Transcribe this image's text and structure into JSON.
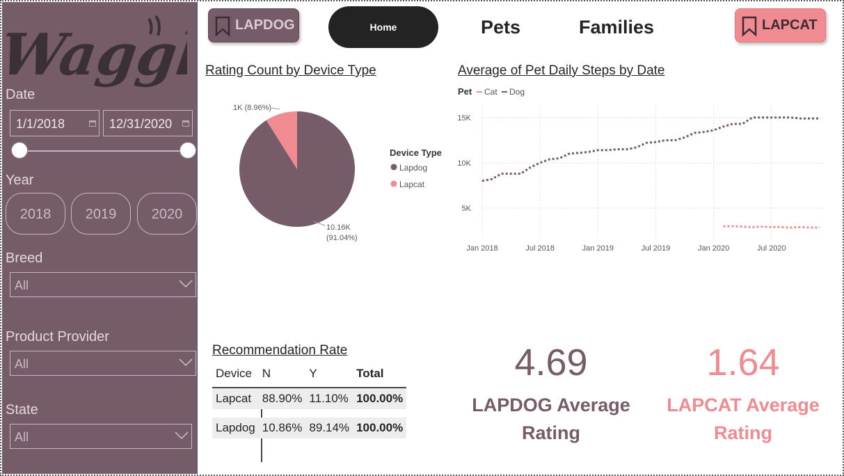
{
  "sidebar": {
    "logo_text": "Waggle",
    "date_label": "Date",
    "date_start": "1/1/2018",
    "date_end": "12/31/2020",
    "year_label": "Year",
    "years": [
      "2018",
      "2019",
      "2020"
    ],
    "breed_label": "Breed",
    "breed_value": "All",
    "provider_label": "Product Provider",
    "provider_value": "All",
    "state_label": "State",
    "state_value": "All"
  },
  "nav": {
    "lapdog": "LAPDOG",
    "home": "Home",
    "pets": "Pets",
    "families": "Families",
    "lapcat": "LAPCAT"
  },
  "colors": {
    "lapdog": "#765b68",
    "lapcat": "#f08b92",
    "sidebar": "#765b68"
  },
  "pie": {
    "title": "Rating Count by Device Type",
    "legend_title": "Device Type",
    "slices": [
      {
        "name": "Lapdog",
        "value": 10.16,
        "label": "10.16K",
        "pct": "(91.04%)",
        "color": "#765b68"
      },
      {
        "name": "Lapcat",
        "value": 1.0,
        "label": "1K (8.96%)",
        "color": "#f08b92"
      }
    ]
  },
  "chart_data": {
    "type": "line",
    "title": "Average of Pet Daily Steps by Date",
    "legend_title": "Pet",
    "y_ticks": [
      "5K",
      "10K",
      "15K"
    ],
    "x_ticks": [
      "Jan 2018",
      "Jul 2018",
      "Jan 2019",
      "Jul 2019",
      "Jan 2020",
      "Jul 2020"
    ],
    "ylim": [
      1700,
      16300
    ],
    "series": [
      {
        "name": "Cat",
        "color": "#f08b92",
        "x": [
          "2020-02",
          "2020-03",
          "2020-04",
          "2020-05",
          "2020-06",
          "2020-07",
          "2020-08",
          "2020-09",
          "2020-10",
          "2020-11",
          "2020-12"
        ],
        "values": [
          3000,
          3000,
          2950,
          2900,
          2950,
          2900,
          2900,
          2850,
          2900,
          2850,
          2850
        ]
      },
      {
        "name": "Dog",
        "color": "#765b68",
        "x": [
          "2018-01",
          "2018-02",
          "2018-03",
          "2018-04",
          "2018-05",
          "2018-06",
          "2018-07",
          "2018-08",
          "2018-09",
          "2018-10",
          "2018-11",
          "2018-12",
          "2019-01",
          "2019-02",
          "2019-03",
          "2019-04",
          "2019-05",
          "2019-06",
          "2019-07",
          "2019-08",
          "2019-09",
          "2019-10",
          "2019-11",
          "2019-12",
          "2020-01",
          "2020-02",
          "2020-03",
          "2020-04",
          "2020-05",
          "2020-06",
          "2020-07",
          "2020-08",
          "2020-09",
          "2020-10",
          "2020-11",
          "2020-12"
        ],
        "values": [
          8000,
          8200,
          8800,
          8800,
          8800,
          9500,
          10000,
          10400,
          10500,
          11000,
          11100,
          11200,
          11400,
          11400,
          11500,
          11500,
          11700,
          12200,
          12300,
          12500,
          12500,
          12800,
          13300,
          13400,
          13600,
          14000,
          14300,
          14300,
          15000,
          15000,
          15000,
          15000,
          15000,
          14900,
          14900,
          14900
        ]
      }
    ]
  },
  "recommendation": {
    "title": "Recommendation Rate",
    "headers": [
      "Device",
      "N",
      "Y",
      "Total"
    ],
    "rows": [
      [
        "Lapcat",
        "88.90%",
        "11.10%",
        "100.00%"
      ],
      [
        "Lapdog",
        "10.86%",
        "89.14%",
        "100.00%"
      ]
    ]
  },
  "kpi": {
    "lapdog_value": "4.69",
    "lapdog_label_1": "LAPDOG Average",
    "lapdog_label_2": "Rating",
    "lapcat_value": "1.64",
    "lapcat_label_1": "LAPCAT Average",
    "lapcat_label_2": "Rating"
  }
}
